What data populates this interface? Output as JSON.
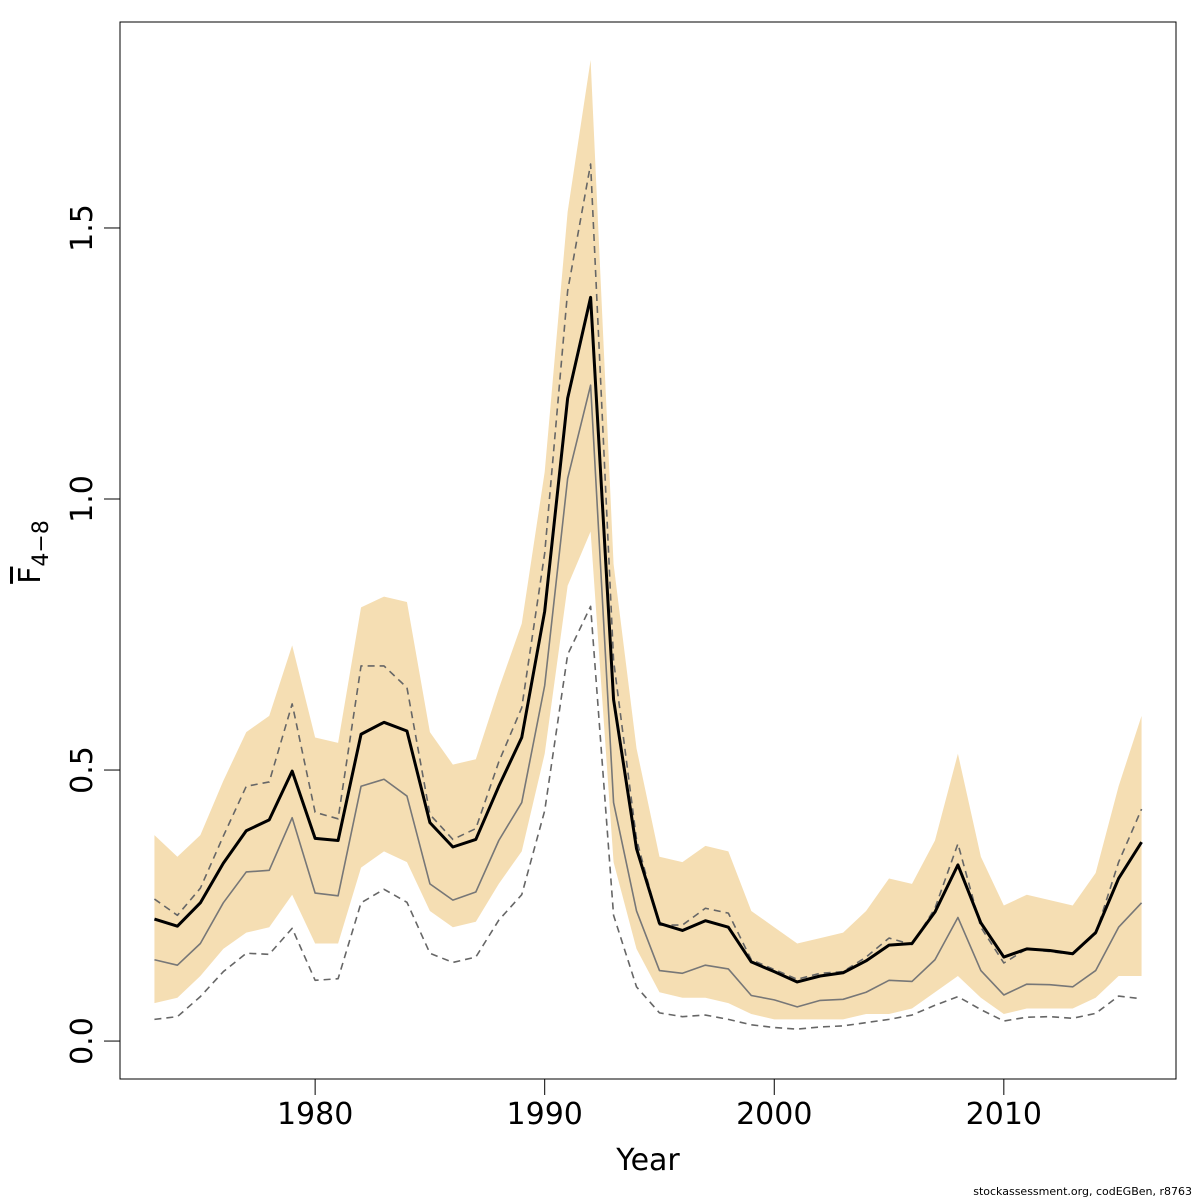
{
  "chart_data": {
    "type": "line",
    "xlabel": "Year",
    "ylabel_main": "F",
    "ylabel_sub": "4−8",
    "xlim": [
      1971.5,
      2017.5
    ],
    "ylim": [
      -0.07,
      1.88
    ],
    "x_ticks": [
      {
        "value": 1980,
        "label": "1980"
      },
      {
        "value": 1990,
        "label": "1990"
      },
      {
        "value": 2000,
        "label": "2000"
      },
      {
        "value": 2010,
        "label": "2010"
      }
    ],
    "y_ticks": [
      {
        "value": 0.0,
        "label": "0.0"
      },
      {
        "value": 0.5,
        "label": "0.5"
      },
      {
        "value": 1.0,
        "label": "1.0"
      },
      {
        "value": 1.5,
        "label": "1.5"
      }
    ],
    "x": [
      1973,
      1974,
      1975,
      1976,
      1977,
      1978,
      1979,
      1980,
      1981,
      1982,
      1983,
      1984,
      1985,
      1986,
      1987,
      1988,
      1989,
      1990,
      1991,
      1992,
      1993,
      1994,
      1995,
      1996,
      1997,
      1998,
      1999,
      2000,
      2001,
      2002,
      2003,
      2004,
      2005,
      2006,
      2007,
      2008,
      2009,
      2010,
      2011,
      2012,
      2013,
      2014,
      2015,
      2016
    ],
    "band": {
      "color": "#f5deb3",
      "upper": [
        0.38,
        0.34,
        0.38,
        0.48,
        0.57,
        0.6,
        0.73,
        0.56,
        0.55,
        0.8,
        0.82,
        0.81,
        0.57,
        0.51,
        0.52,
        0.65,
        0.77,
        1.05,
        1.53,
        1.81,
        0.88,
        0.54,
        0.34,
        0.33,
        0.36,
        0.35,
        0.24,
        0.21,
        0.18,
        0.19,
        0.2,
        0.24,
        0.3,
        0.29,
        0.37,
        0.53,
        0.34,
        0.25,
        0.27,
        0.26,
        0.25,
        0.31,
        0.47,
        0.6
      ],
      "lower": [
        0.07,
        0.08,
        0.12,
        0.17,
        0.2,
        0.21,
        0.27,
        0.18,
        0.18,
        0.32,
        0.35,
        0.33,
        0.24,
        0.21,
        0.22,
        0.29,
        0.35,
        0.53,
        0.84,
        0.94,
        0.33,
        0.17,
        0.09,
        0.08,
        0.08,
        0.07,
        0.05,
        0.04,
        0.04,
        0.04,
        0.04,
        0.05,
        0.05,
        0.06,
        0.09,
        0.12,
        0.08,
        0.05,
        0.06,
        0.06,
        0.06,
        0.08,
        0.12,
        0.12
      ]
    },
    "series": [
      {
        "style": "thick",
        "color": "#000000",
        "values": [
          0.225,
          0.212,
          0.255,
          0.328,
          0.388,
          0.408,
          0.498,
          0.374,
          0.37,
          0.566,
          0.588,
          0.572,
          0.403,
          0.358,
          0.372,
          0.47,
          0.56,
          0.793,
          1.186,
          1.372,
          0.63,
          0.355,
          0.217,
          0.204,
          0.222,
          0.21,
          0.146,
          0.128,
          0.109,
          0.12,
          0.126,
          0.148,
          0.177,
          0.18,
          0.238,
          0.325,
          0.218,
          0.155,
          0.17,
          0.167,
          0.161,
          0.2,
          0.3,
          0.367
        ]
      },
      {
        "style": "thin",
        "color": "#777777",
        "values": [
          0.15,
          0.14,
          0.18,
          0.255,
          0.312,
          0.315,
          0.412,
          0.273,
          0.268,
          0.47,
          0.483,
          0.452,
          0.29,
          0.26,
          0.275,
          0.37,
          0.44,
          0.656,
          1.038,
          1.21,
          0.44,
          0.24,
          0.13,
          0.125,
          0.14,
          0.133,
          0.084,
          0.076,
          0.063,
          0.075,
          0.077,
          0.09,
          0.112,
          0.11,
          0.15,
          0.228,
          0.13,
          0.085,
          0.105,
          0.104,
          0.1,
          0.13,
          0.21,
          0.255
        ]
      },
      {
        "style": "dashed",
        "color": "#666666",
        "values": [
          0.262,
          0.232,
          0.282,
          0.378,
          0.47,
          0.478,
          0.622,
          0.422,
          0.41,
          0.692,
          0.692,
          0.652,
          0.418,
          0.372,
          0.392,
          0.515,
          0.615,
          0.9,
          1.384,
          1.618,
          0.702,
          0.372,
          0.214,
          0.214,
          0.245,
          0.236,
          0.15,
          0.132,
          0.114,
          0.125,
          0.128,
          0.155,
          0.19,
          0.178,
          0.245,
          0.364,
          0.21,
          0.144,
          0.17,
          0.165,
          0.16,
          0.198,
          0.33,
          0.428
        ]
      },
      {
        "style": "dashed",
        "color": "#666666",
        "values": [
          0.04,
          0.045,
          0.082,
          0.128,
          0.162,
          0.16,
          0.208,
          0.112,
          0.115,
          0.255,
          0.28,
          0.256,
          0.162,
          0.145,
          0.155,
          0.223,
          0.27,
          0.425,
          0.713,
          0.802,
          0.232,
          0.1,
          0.052,
          0.045,
          0.048,
          0.04,
          0.03,
          0.025,
          0.022,
          0.026,
          0.028,
          0.034,
          0.04,
          0.048,
          0.066,
          0.082,
          0.058,
          0.037,
          0.044,
          0.045,
          0.042,
          0.051,
          0.083,
          0.078
        ]
      }
    ]
  },
  "footer_text": "stockassessment.org, codEGBen, r8763"
}
